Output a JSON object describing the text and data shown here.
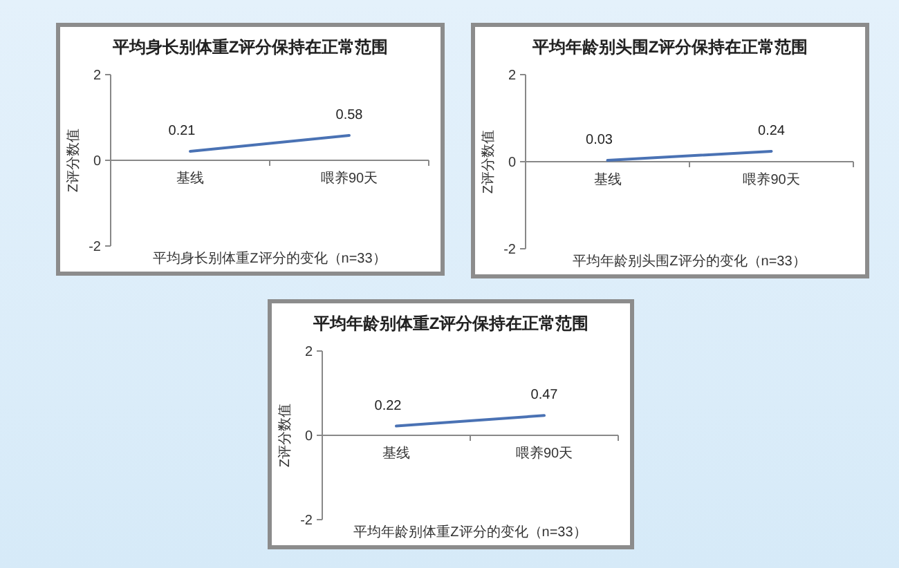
{
  "chart_data": [
    {
      "type": "line",
      "title": "平均身长别体重Z评分保持在正常范围",
      "xlabel": "平均身长别体重Z评分的变化（n=33）",
      "ylabel": "Z评分数值",
      "categories": [
        "基线",
        "喂养90天"
      ],
      "series": [
        {
          "color": "#4a72b4",
          "values": [
            0.21,
            0.58
          ]
        }
      ],
      "ylim": [
        -2,
        2
      ],
      "yticks": [
        -2,
        0,
        2
      ],
      "data_labels": true,
      "grid": false,
      "marker": "none",
      "line_style": "solid"
    },
    {
      "type": "line",
      "title": "平均年龄别头围Z评分保持在正常范围",
      "xlabel": "平均年龄别头围Z评分的变化（n=33）",
      "ylabel": "Z评分数值",
      "categories": [
        "基线",
        "喂养90天"
      ],
      "series": [
        {
          "color": "#4a72b4",
          "values": [
            0.03,
            0.24
          ]
        }
      ],
      "ylim": [
        -2,
        2
      ],
      "yticks": [
        -2,
        0,
        2
      ],
      "data_labels": true,
      "grid": false,
      "marker": "none",
      "line_style": "solid"
    },
    {
      "type": "line",
      "title": "平均年龄别体重Z评分保持在正常范围",
      "xlabel": "平均年龄别体重Z评分的变化（n=33）",
      "ylabel": "Z评分数值",
      "categories": [
        "基线",
        "喂养90天"
      ],
      "series": [
        {
          "color": "#4a72b4",
          "values": [
            0.22,
            0.47
          ]
        }
      ],
      "ylim": [
        -2,
        2
      ],
      "yticks": [
        -2,
        0,
        2
      ],
      "data_labels": true,
      "grid": false,
      "marker": "none",
      "line_style": "solid"
    }
  ]
}
